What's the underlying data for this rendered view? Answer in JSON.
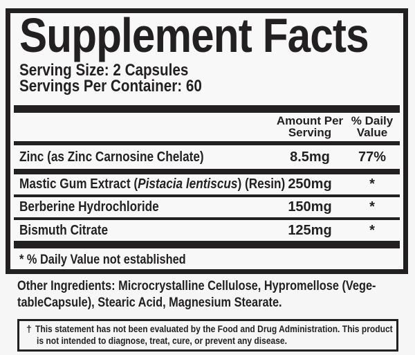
{
  "colors": {
    "ink": "#232022",
    "background": "#f6f6f7"
  },
  "panel": {
    "title": "Supplement Facts",
    "serving_size": "Serving Size: 2 Capsules",
    "servings_per_container": "Servings Per Container: 60",
    "header": {
      "amount_line1": "Amount Per",
      "amount_line2": "Serving",
      "dv_line1": "% Daily",
      "dv_line2": "Value"
    },
    "rows": [
      {
        "name": "Zinc (as Zinc Carnosine Chelate)",
        "amount": "8.5mg",
        "dv": "77%"
      },
      {
        "name_pre": "Mastic Gum Extract (",
        "name_italic": "Pistacia lentiscus",
        "name_post": ") (Resin)",
        "amount": "250mg",
        "dv": "*"
      },
      {
        "name": "Berberine Hydrochloride",
        "amount": "150mg",
        "dv": "*"
      },
      {
        "name": "Bismuth Citrate",
        "amount": "125mg",
        "dv": "*"
      }
    ],
    "footnote": "* % Daily Value not established"
  },
  "other_ingredients": {
    "line1": "Other Ingredients: Microcrystalline Cellulose, Hypromellose (Vege-",
    "line2": "tableCapsule), Stearic Acid, Magnesium Stearate."
  },
  "disclaimer": {
    "symbol": "†",
    "line1": "This statement has not been evaluated by the Food and Drug Administration. This  product",
    "line2": "is not intended to diagnose, treat, cure, or prevent any disease."
  }
}
